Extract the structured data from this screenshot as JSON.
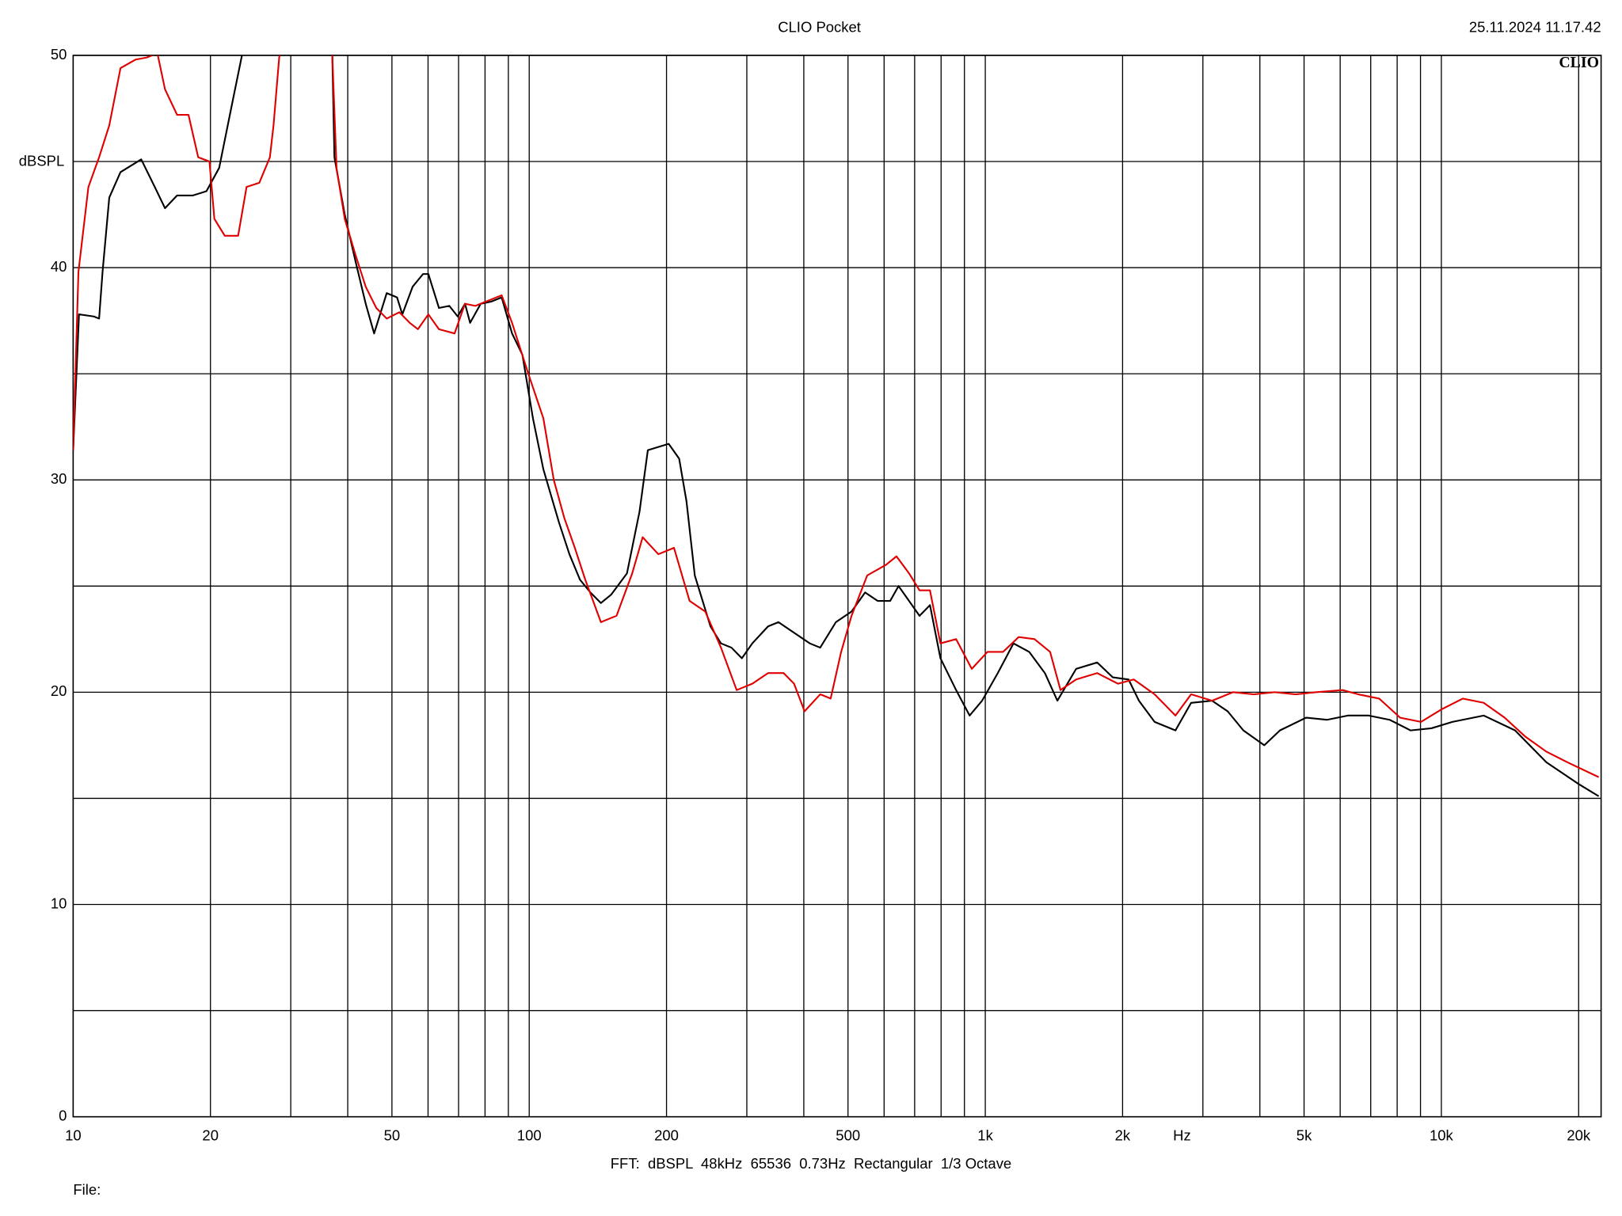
{
  "chart_data": {
    "type": "line",
    "title": "CLIO Pocket",
    "timestamp": "25.11.2024 11.17.42",
    "logo": "CLIO",
    "y_label": "dBSPL",
    "x_label": "Hz",
    "footer": "FFT:  dBSPL  48kHz  65536  0.73Hz  Rectangular  1/3 Octave",
    "file_label": "File:",
    "xscale": "log",
    "grid": true,
    "xlim": [
      10,
      22400
    ],
    "ylim": [
      0,
      50
    ],
    "yticks": [
      0,
      10,
      20,
      30,
      40,
      50
    ],
    "ygrid_minor": [
      5,
      15,
      25,
      35,
      45
    ],
    "xticks": [
      10,
      20,
      50,
      100,
      200,
      500,
      {
        "value": 1000,
        "label": "1k"
      },
      {
        "value": 2000,
        "label": "2k"
      },
      {
        "value": 5000,
        "label": "5k"
      },
      {
        "value": 10000,
        "label": "10k"
      },
      {
        "value": 20000,
        "label": "20k"
      }
    ],
    "xgrid_minor": [
      30,
      40,
      60,
      70,
      80,
      90,
      300,
      400,
      600,
      700,
      800,
      900,
      3000,
      4000,
      6000,
      7000,
      8000,
      9000
    ],
    "series": [
      {
        "color": "#000000",
        "x": [
          10,
          10.3,
          11.1,
          11.4,
          11.6,
          12.0,
          12.7,
          14.1,
          15.1,
          15.9,
          16.9,
          18.3,
          19.6,
          20.9,
          22.3,
          23.5,
          31.9,
          37.0,
          37.4,
          39.4,
          41.6,
          43.8,
          45.7,
          48.7,
          51.3,
          52.7,
          55.5,
          58.5,
          60.1,
          63.4,
          66.8,
          69.7,
          72.3,
          74.2,
          78.3,
          82.5,
          87.0,
          91.7,
          96.6,
          101.9,
          107.4,
          116.2,
          122.5,
          129.2,
          136.2,
          143.6,
          151.3,
          163.8,
          174.5,
          182.0,
          202.2,
          213.2,
          221.2,
          230.7,
          249.7,
          263.3,
          277.6,
          292.6,
          308.4,
          333.9,
          351.9,
          380.8,
          412.2,
          434.5,
          470.3,
          509.0,
          545.1,
          580.7,
          618.6,
          645.4,
          680.5,
          717.4,
          756.3,
          797.3,
          863,
          924,
          984,
          1065,
          1153,
          1248,
          1351,
          1439,
          1582,
          1759,
          1904,
          2061,
          2172,
          2351,
          2612,
          2827,
          3142,
          3400,
          3680,
          4090,
          4426,
          5050,
          5611,
          6237,
          6931,
          7702,
          8559,
          9510,
          10570,
          12383,
          14508,
          16993,
          19910,
          22130
        ],
        "values": [
          31.4,
          37.8,
          37.7,
          37.6,
          39.8,
          43.3,
          44.5,
          45.1,
          43.8,
          42.8,
          43.4,
          43.4,
          43.6,
          44.7,
          47.7,
          50.1,
          55,
          50.0,
          45.2,
          42.5,
          40.3,
          38.3,
          36.9,
          38.8,
          38.6,
          37.8,
          39.1,
          39.7,
          39.7,
          38.1,
          38.2,
          37.7,
          38.3,
          37.4,
          38.3,
          38.4,
          38.6,
          36.9,
          35.9,
          32.9,
          30.5,
          28.0,
          26.5,
          25.3,
          24.7,
          24.2,
          24.6,
          25.6,
          28.5,
          31.4,
          31.7,
          31.0,
          29.0,
          25.5,
          23.1,
          22.3,
          22.1,
          21.6,
          22.3,
          23.1,
          23.3,
          22.8,
          22.3,
          22.1,
          23.3,
          23.8,
          24.7,
          24.3,
          24.3,
          25.0,
          24.3,
          23.6,
          24.1,
          21.6,
          20.1,
          18.9,
          19.6,
          20.9,
          22.3,
          21.9,
          20.9,
          19.6,
          21.1,
          21.4,
          20.7,
          20.6,
          19.6,
          18.6,
          18.2,
          19.5,
          19.6,
          19.1,
          18.2,
          17.5,
          18.2,
          18.8,
          18.7,
          18.9,
          18.9,
          18.7,
          18.2,
          18.3,
          18.6,
          18.9,
          18.2,
          16.7,
          15.7,
          15.1
        ]
      },
      {
        "color": "#e00000",
        "x": [
          10,
          10.27,
          10.8,
          11.4,
          12.0,
          12.7,
          13.7,
          14.5,
          15.3,
          15.9,
          16.9,
          17.9,
          18.8,
          19.9,
          20.4,
          21.5,
          23.0,
          24.0,
          25.6,
          27.0,
          27.5,
          28.3,
          31.9,
          37.0,
          37.8,
          39.4,
          41.6,
          43.8,
          46.2,
          48.7,
          51.9,
          54.7,
          57.0,
          60.1,
          63.4,
          68.6,
          72.3,
          76.2,
          82.5,
          87.0,
          91.7,
          99.2,
          107.4,
          113.2,
          119.4,
          125.9,
          132.7,
          143.6,
          155.4,
          168.2,
          177.3,
          191.9,
          207.7,
          224.7,
          243.2,
          263.3,
          285.0,
          308.4,
          333.9,
          361.3,
          380.8,
          401.5,
          434.5,
          458.1,
          483.0,
          509.0,
          550.9,
          605.7,
          638.6,
          680.5,
          717.4,
          756.3,
          797.3,
          863,
          934,
          1011,
          1094,
          1184,
          1282,
          1387,
          1462,
          1582,
          1759,
          1955,
          2116,
          2351,
          2612,
          2827,
          3142,
          3491,
          3880,
          4311,
          4790,
          5323,
          6072,
          6575,
          7306,
          8119,
          9022,
          10025,
          11143,
          12383,
          13763,
          15294,
          16993,
          18886,
          22130
        ],
        "values": [
          31.4,
          39.8,
          43.8,
          45.2,
          46.7,
          49.4,
          49.8,
          49.9,
          50.1,
          48.4,
          47.2,
          47.2,
          45.2,
          45.0,
          42.3,
          41.5,
          41.5,
          43.8,
          44.0,
          45.2,
          46.7,
          49.9,
          55,
          50.0,
          44.7,
          42.3,
          40.6,
          39.1,
          38.1,
          37.6,
          37.9,
          37.4,
          37.1,
          37.8,
          37.1,
          36.9,
          38.3,
          38.2,
          38.5,
          38.7,
          37.4,
          35.1,
          32.9,
          30.0,
          28.2,
          26.8,
          25.3,
          23.3,
          23.6,
          25.6,
          27.3,
          26.5,
          26.8,
          24.3,
          23.8,
          22.1,
          20.1,
          20.4,
          20.9,
          20.9,
          20.4,
          19.1,
          19.9,
          19.7,
          21.9,
          23.6,
          25.5,
          26.0,
          26.4,
          25.6,
          24.8,
          24.8,
          22.3,
          22.5,
          21.1,
          21.9,
          21.9,
          22.6,
          22.5,
          21.9,
          20.1,
          20.6,
          20.9,
          20.4,
          20.6,
          19.9,
          18.9,
          19.9,
          19.6,
          20.0,
          19.9,
          20.0,
          19.9,
          20.0,
          20.1,
          19.9,
          19.7,
          18.8,
          18.6,
          19.2,
          19.7,
          19.5,
          18.8,
          17.9,
          17.2,
          16.7,
          16.0
        ]
      }
    ]
  }
}
